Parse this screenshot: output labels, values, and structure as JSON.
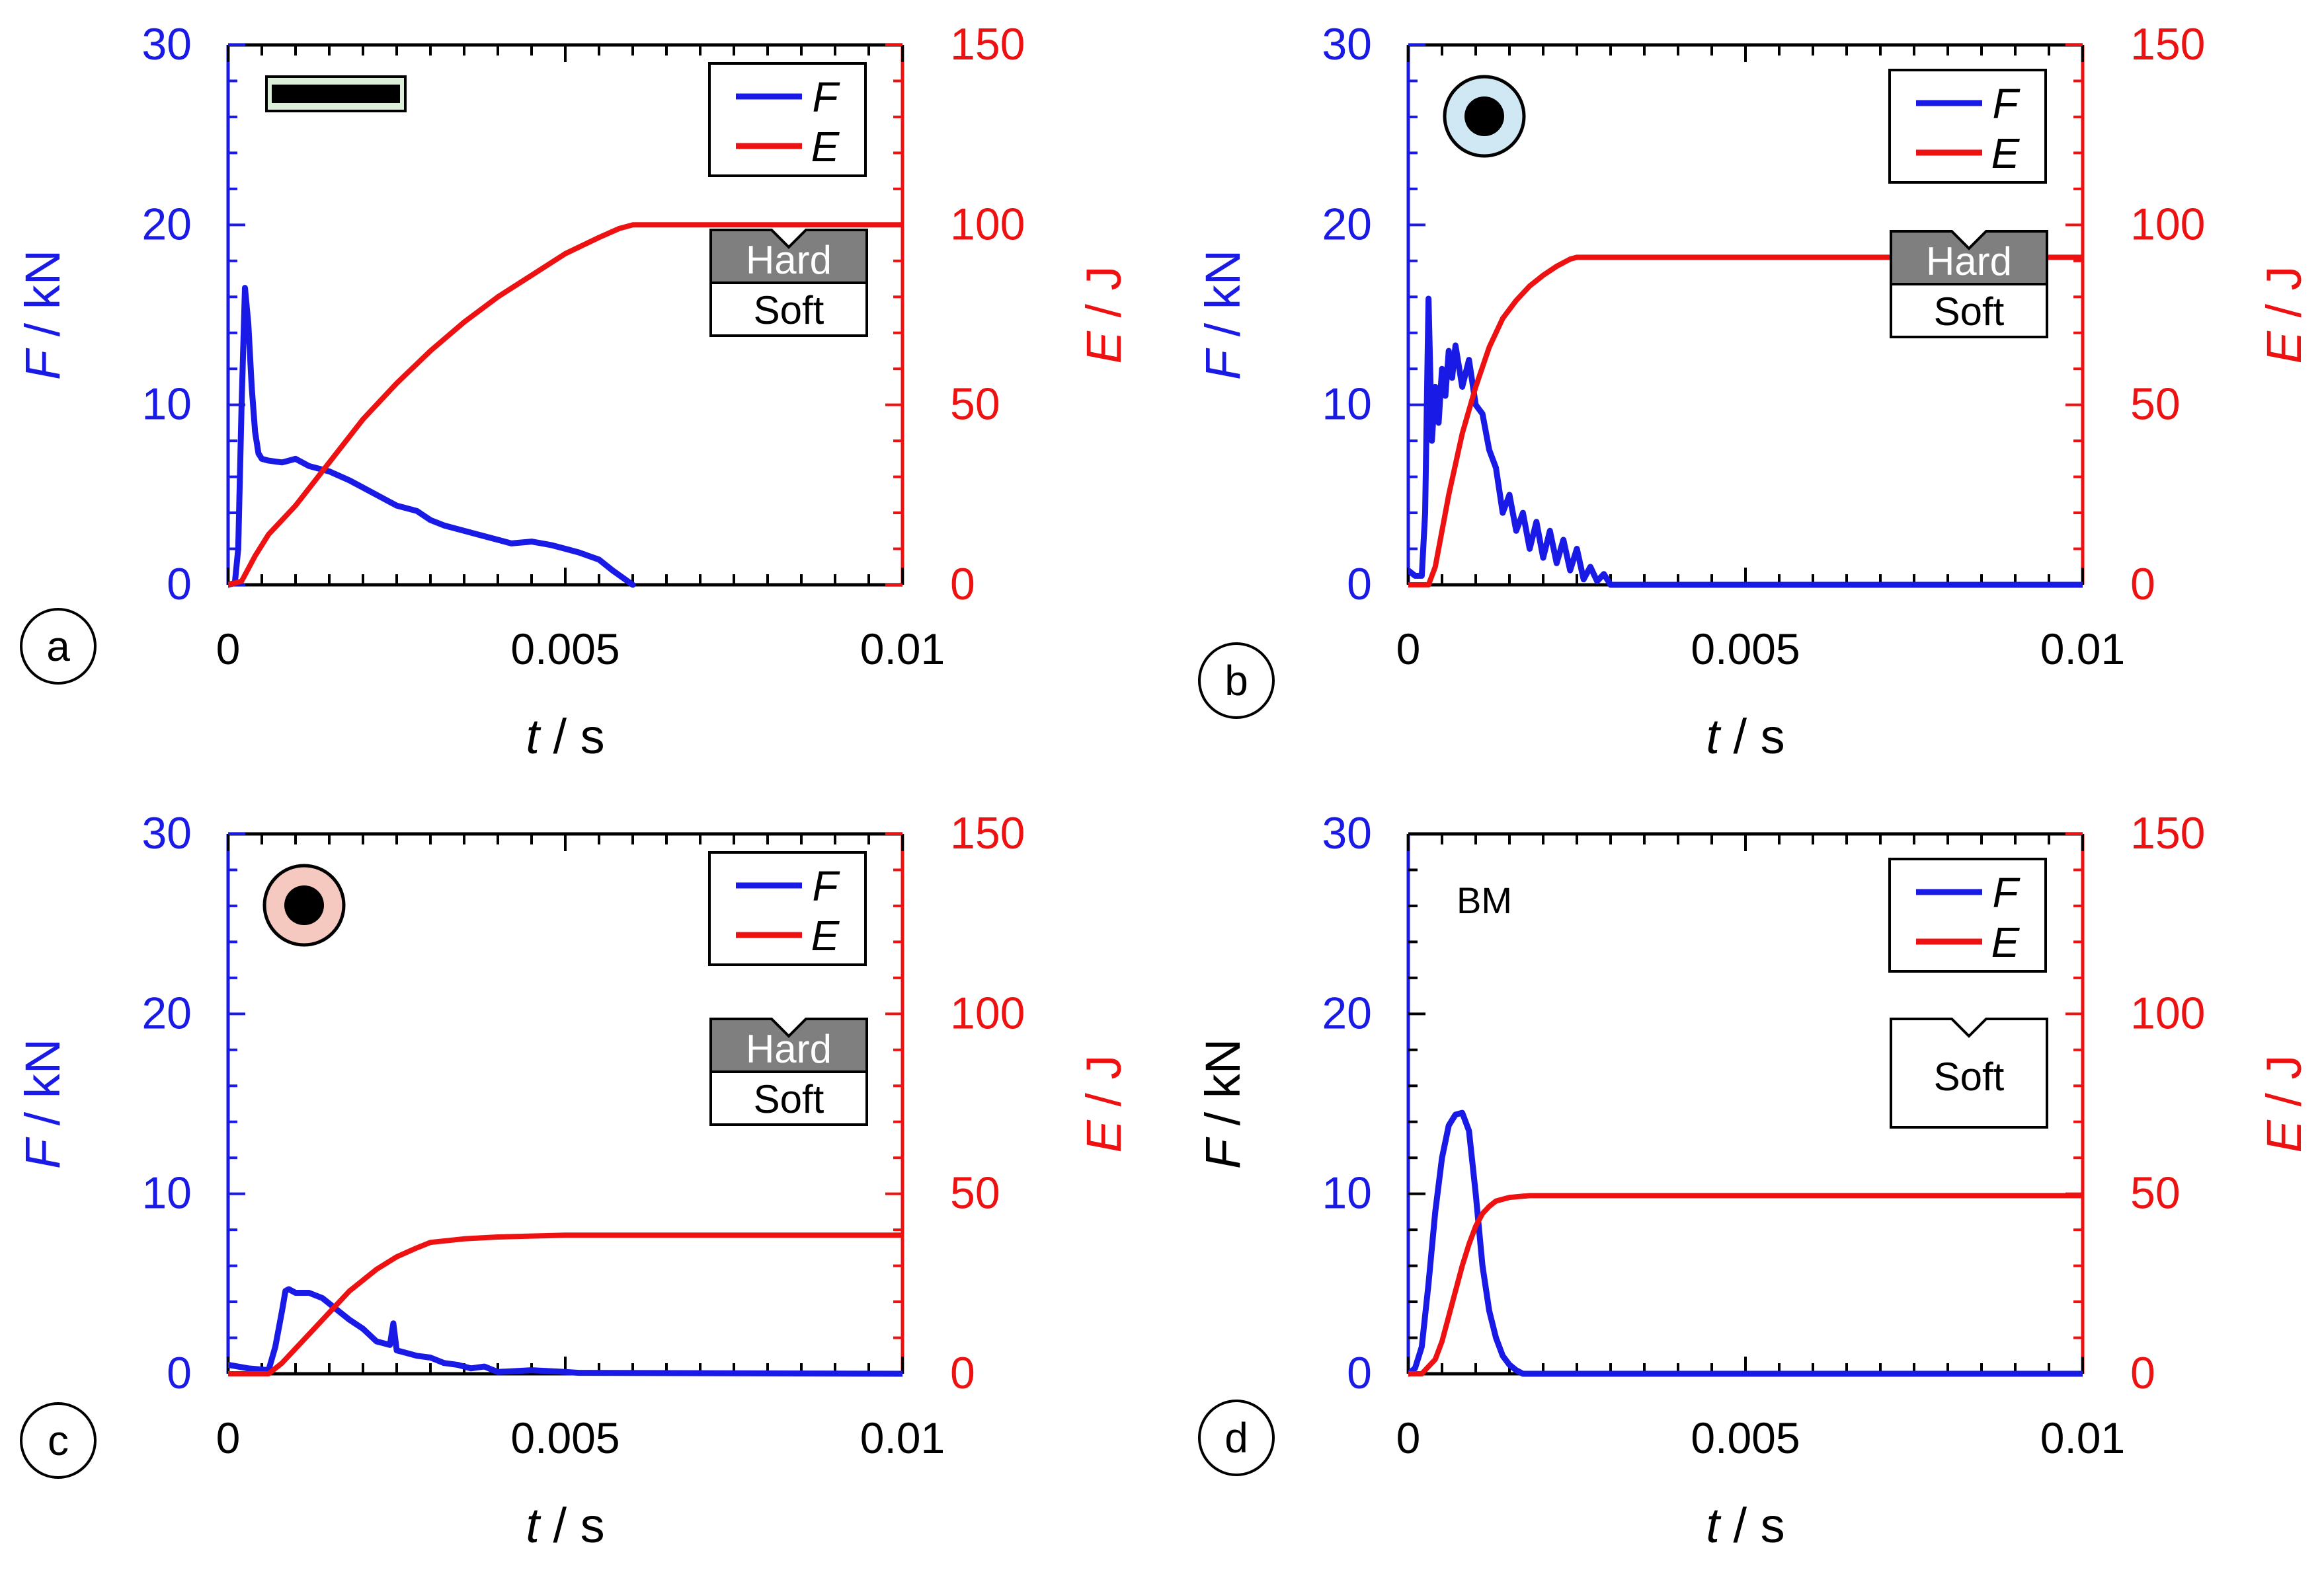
{
  "colors": {
    "force": "#1a1ae6",
    "energy": "#ee1111",
    "axis_black": "#000000",
    "hard_fill": "#7f7f7f",
    "tube_outer_b": "#cfe8f4",
    "tube_outer_c": "#f5c8c0",
    "bar_fill": "#dcefd8"
  },
  "chart_data": [
    {
      "type": "line",
      "panel_label": "a",
      "specimen_icon": "bar",
      "xlabel_italic": "t",
      "xlabel_unit": " / s",
      "ylabel_left_italic": "F",
      "ylabel_left_unit": " / kN",
      "ylabel_right_italic": "E",
      "ylabel_right_unit": " / J",
      "xlim": [
        0,
        0.01
      ],
      "ylim_left": [
        0,
        30
      ],
      "ylim_right": [
        0,
        150
      ],
      "xticks": [
        "0",
        "0.005",
        "0.01"
      ],
      "yticks_left": [
        "0",
        "10",
        "20",
        "30"
      ],
      "yticks_right": [
        "0",
        "50",
        "100",
        "150"
      ],
      "legend": [
        "F",
        "E"
      ],
      "notch": {
        "hard": "Hard",
        "soft": "Soft"
      },
      "series": [
        {
          "name": "F",
          "axis": "left",
          "x": [
            0,
            0.0001,
            0.00015,
            0.0002,
            0.00025,
            0.0003,
            0.00035,
            0.0004,
            0.00045,
            0.0005,
            0.0006,
            0.0008,
            0.001,
            0.0012,
            0.0015,
            0.0018,
            0.002,
            0.0022,
            0.0025,
            0.0028,
            0.003,
            0.0032,
            0.0035,
            0.0038,
            0.004,
            0.0042,
            0.0045,
            0.0048,
            0.005,
            0.0052,
            0.0055,
            0.0057,
            0.006
          ],
          "y": [
            0,
            0.1,
            2,
            10,
            16.5,
            14.5,
            11,
            8.5,
            7.3,
            7.0,
            6.9,
            6.8,
            7.0,
            6.6,
            6.3,
            5.8,
            5.4,
            5.0,
            4.4,
            4.1,
            3.6,
            3.3,
            3.0,
            2.7,
            2.5,
            2.3,
            2.4,
            2.2,
            2.0,
            1.8,
            1.4,
            0.8,
            0
          ]
        },
        {
          "name": "E",
          "axis": "right",
          "x": [
            0,
            0.0002,
            0.0004,
            0.0006,
            0.0008,
            0.001,
            0.0015,
            0.002,
            0.0025,
            0.003,
            0.0035,
            0.004,
            0.0045,
            0.005,
            0.0055,
            0.0058,
            0.006,
            0.01
          ],
          "y": [
            0,
            1,
            8,
            14,
            18,
            22,
            34,
            46,
            56,
            65,
            73,
            80,
            86,
            92,
            96.5,
            99,
            100,
            100
          ]
        }
      ]
    },
    {
      "type": "line",
      "panel_label": "b",
      "specimen_icon": "tube-blue",
      "xlabel_italic": "t",
      "xlabel_unit": " / s",
      "ylabel_left_italic": "F",
      "ylabel_left_unit": " / kN",
      "ylabel_right_italic": "E",
      "ylabel_right_unit": " / J",
      "xlim": [
        0,
        0.01
      ],
      "ylim_left": [
        0,
        30
      ],
      "ylim_right": [
        0,
        150
      ],
      "xticks": [
        "0",
        "0.005",
        "0.01"
      ],
      "yticks_left": [
        "0",
        "10",
        "20",
        "30"
      ],
      "yticks_right": [
        "0",
        "50",
        "100",
        "150"
      ],
      "legend": [
        "F",
        "E"
      ],
      "notch": {
        "hard": "Hard",
        "soft": "Soft"
      },
      "series": [
        {
          "name": "F",
          "axis": "left",
          "x": [
            0,
            0.0001,
            0.0002,
            0.00025,
            0.0003,
            0.00035,
            0.0004,
            0.00045,
            0.0005,
            0.00055,
            0.0006,
            0.00065,
            0.0007,
            0.0008,
            0.0009,
            0.001,
            0.0011,
            0.0012,
            0.0013,
            0.0014,
            0.0015,
            0.0016,
            0.0017,
            0.0018,
            0.0019,
            0.002,
            0.0021,
            0.0022,
            0.0023,
            0.0024,
            0.0025,
            0.0026,
            0.0027,
            0.0028,
            0.0029,
            0.003,
            0.01
          ],
          "y": [
            0.8,
            0.5,
            0.5,
            4,
            15.9,
            8,
            11,
            9,
            12,
            10.5,
            13,
            11.5,
            13.3,
            11,
            12.5,
            10,
            9.5,
            7.5,
            6.5,
            4,
            5,
            3,
            4,
            2,
            3.5,
            1.5,
            3,
            1.2,
            2.5,
            0.8,
            2,
            0.3,
            1,
            0.2,
            0.6,
            0,
            0
          ]
        },
        {
          "name": "E",
          "axis": "right",
          "x": [
            0,
            0.0003,
            0.0004,
            0.0006,
            0.0008,
            0.001,
            0.0012,
            0.0014,
            0.0016,
            0.0018,
            0.002,
            0.0022,
            0.0024,
            0.0025,
            0.01
          ],
          "y": [
            0,
            0,
            5,
            25,
            42,
            55,
            66,
            74,
            79,
            83,
            86,
            88.5,
            90.5,
            91,
            91
          ]
        }
      ]
    },
    {
      "type": "line",
      "panel_label": "c",
      "specimen_icon": "tube-red",
      "xlabel_italic": "t",
      "xlabel_unit": " / s",
      "ylabel_left_italic": "F",
      "ylabel_left_unit": " / kN",
      "ylabel_right_italic": "E",
      "ylabel_right_unit": " / J",
      "xlim": [
        0,
        0.01
      ],
      "ylim_left": [
        0,
        30
      ],
      "ylim_right": [
        0,
        150
      ],
      "xticks": [
        "0",
        "0.005",
        "0.01"
      ],
      "yticks_left": [
        "0",
        "10",
        "20",
        "30"
      ],
      "yticks_right": [
        "0",
        "50",
        "100",
        "150"
      ],
      "legend": [
        "F",
        "E"
      ],
      "notch": {
        "hard": "Hard",
        "soft": "Soft"
      },
      "series": [
        {
          "name": "F",
          "axis": "left",
          "x": [
            0,
            0.0003,
            0.0006,
            0.0007,
            0.0008,
            0.00085,
            0.0009,
            0.001,
            0.0012,
            0.0014,
            0.0016,
            0.0018,
            0.002,
            0.0022,
            0.0023,
            0.0024,
            0.00245,
            0.0025,
            0.0026,
            0.0028,
            0.003,
            0.0032,
            0.0034,
            0.0036,
            0.0038,
            0.004,
            0.0045,
            0.005,
            0.0052,
            0.01
          ],
          "y": [
            0.5,
            0.3,
            0.2,
            1.5,
            3.5,
            4.6,
            4.7,
            4.5,
            4.5,
            4.2,
            3.6,
            3.0,
            2.5,
            1.8,
            1.7,
            1.6,
            2.8,
            1.3,
            1.2,
            1.0,
            0.9,
            0.6,
            0.5,
            0.3,
            0.4,
            0.1,
            0.2,
            0.1,
            0.05,
            0
          ]
        },
        {
          "name": "E",
          "axis": "right",
          "x": [
            0,
            0.0006,
            0.0008,
            0.001,
            0.0012,
            0.0014,
            0.0016,
            0.0018,
            0.002,
            0.0022,
            0.0025,
            0.0028,
            0.003,
            0.0035,
            0.004,
            0.005,
            0.01
          ],
          "y": [
            0,
            0,
            3,
            7,
            11,
            15,
            19,
            23,
            26,
            29,
            32.5,
            35,
            36.5,
            37.5,
            38,
            38.5,
            38.5
          ]
        }
      ]
    },
    {
      "type": "line",
      "panel_label": "d",
      "specimen_icon": "",
      "annotation": "BM",
      "xlabel_italic": "t",
      "xlabel_unit": " / s",
      "ylabel_left_italic": "F",
      "ylabel_left_unit": " / kN",
      "ylabel_right_italic": "E",
      "ylabel_right_unit": " / J",
      "xlim": [
        0,
        0.01
      ],
      "ylim_left": [
        0,
        30
      ],
      "ylim_right": [
        0,
        150
      ],
      "xticks": [
        "0",
        "0.005",
        "0.01"
      ],
      "yticks_left": [
        "0",
        "10",
        "20",
        "30"
      ],
      "yticks_right": [
        "0",
        "50",
        "100",
        "150"
      ],
      "legend": [
        "F",
        "E"
      ],
      "notch": {
        "hard": "",
        "soft": "Soft"
      },
      "series": [
        {
          "name": "F",
          "axis": "left",
          "x": [
            0,
            0.0001,
            0.0002,
            0.0003,
            0.0004,
            0.0005,
            0.0006,
            0.0007,
            0.0008,
            0.0009,
            0.001,
            0.0011,
            0.0012,
            0.0013,
            0.0014,
            0.0015,
            0.0016,
            0.0017,
            0.01
          ],
          "y": [
            0,
            0.3,
            1.5,
            5,
            9,
            12,
            13.8,
            14.4,
            14.5,
            13.5,
            10,
            6,
            3.5,
            2,
            1,
            0.5,
            0.2,
            0,
            0
          ]
        },
        {
          "name": "E",
          "axis": "right",
          "x": [
            0,
            0.0002,
            0.0004,
            0.0005,
            0.0006,
            0.0007,
            0.0008,
            0.0009,
            0.001,
            0.0011,
            0.0012,
            0.0013,
            0.0015,
            0.0018,
            0.01
          ],
          "y": [
            0,
            0,
            4,
            9,
            16,
            23,
            30,
            36,
            41,
            44.5,
            46.5,
            48,
            49,
            49.5,
            49.5
          ]
        }
      ]
    }
  ]
}
